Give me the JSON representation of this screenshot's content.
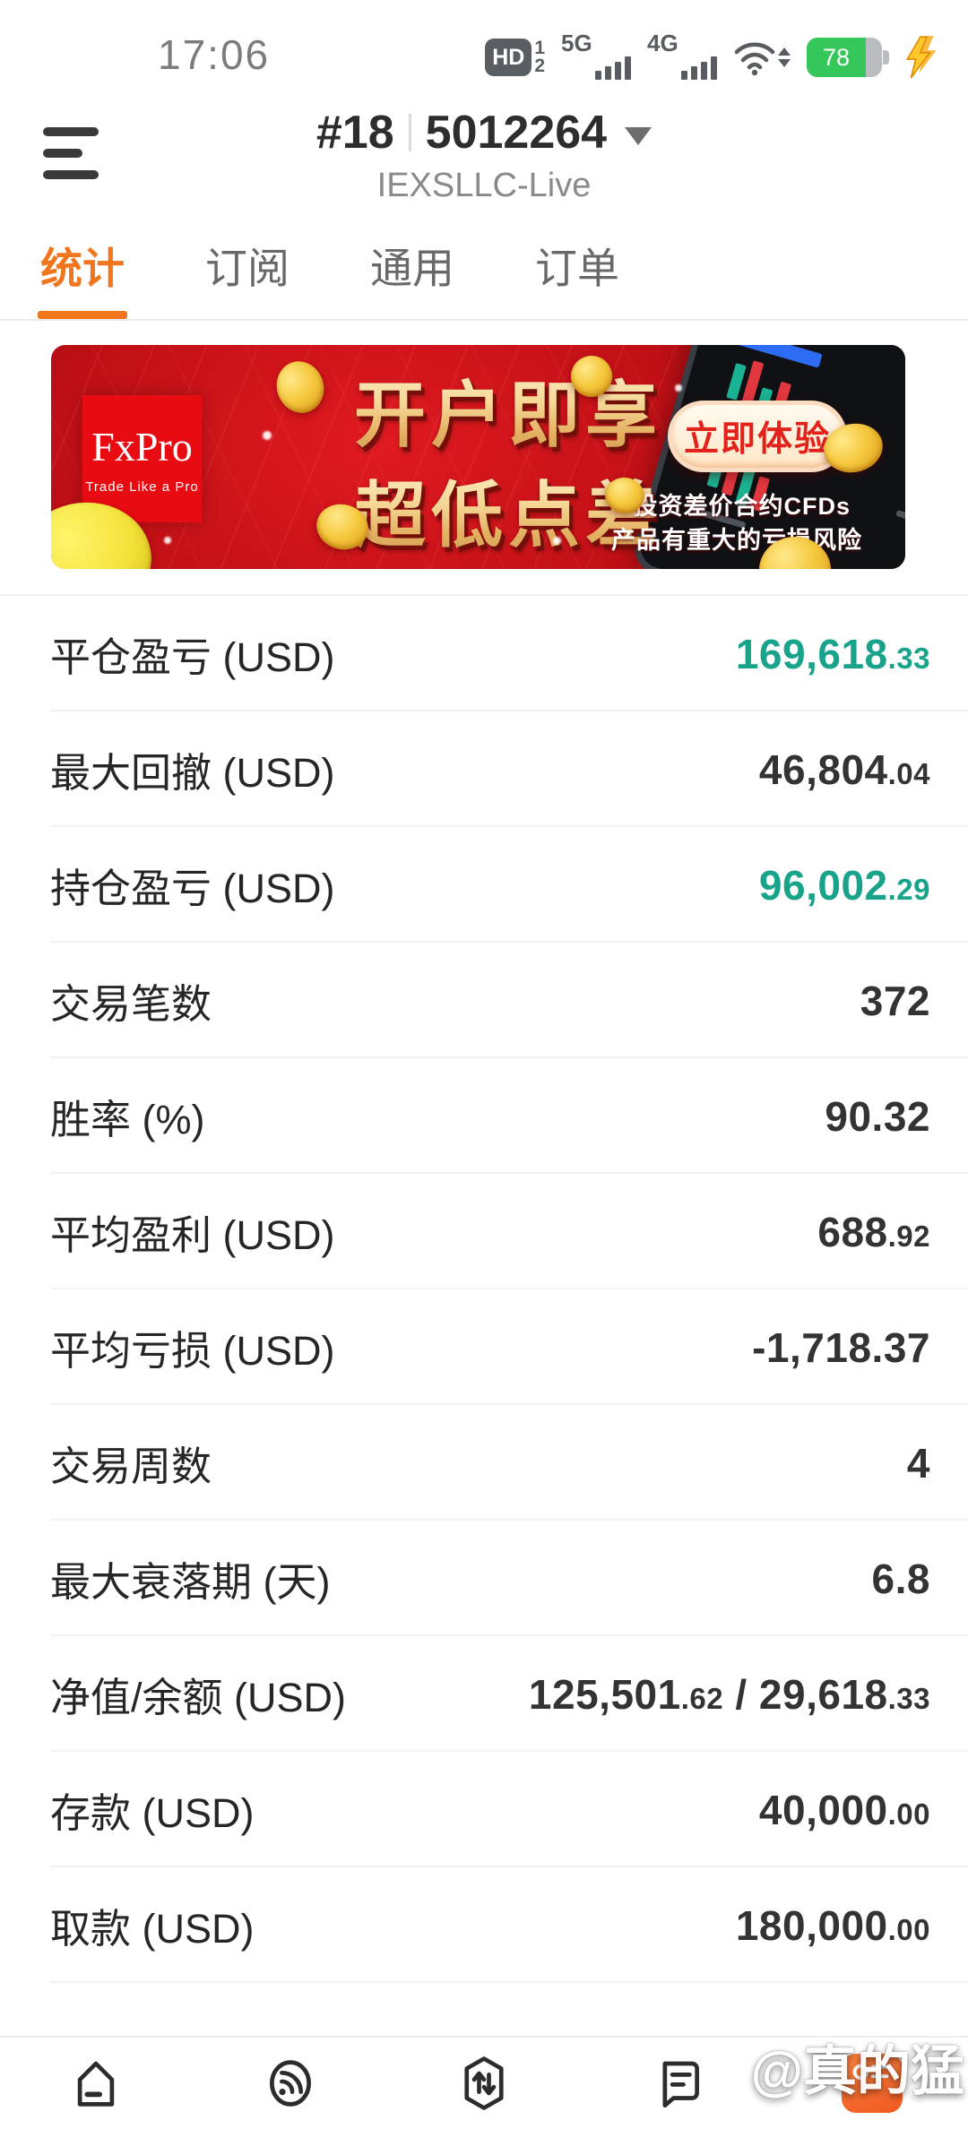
{
  "status_bar": {
    "time": "17:06",
    "hd_label": "HD",
    "sim1": "1",
    "sim2": "2",
    "network1": "5G",
    "network2": "4G",
    "battery_percent": "78"
  },
  "header": {
    "account_index": "#18",
    "account_number": "5012264",
    "server": "IEXSLLC-Live"
  },
  "tabs": [
    {
      "label": "统计",
      "active": true
    },
    {
      "label": "订阅",
      "active": false
    },
    {
      "label": "通用",
      "active": false
    },
    {
      "label": "订单",
      "active": false
    }
  ],
  "banner": {
    "brand": "FxPro",
    "brand_tagline": "Trade Like a Pro",
    "headline_line1": "开户即享",
    "headline_line2": "超低点差",
    "cta_label": "立即体验",
    "disclaimer_line1": "*投资差价合约CFDs",
    "disclaimer_line2": "产品有重大的亏损风险"
  },
  "stats": {
    "rows": [
      {
        "label": "平仓盈亏 (USD)",
        "tone": "teal",
        "value": [
          {
            "text": "169,618",
            "small": false
          },
          {
            "text": ".33",
            "small": true
          }
        ]
      },
      {
        "label": "最大回撤 (USD)",
        "tone": "dark",
        "value": [
          {
            "text": "46,804",
            "small": false
          },
          {
            "text": ".04",
            "small": true
          }
        ]
      },
      {
        "label": "持仓盈亏 (USD)",
        "tone": "teal",
        "value": [
          {
            "text": "96,002",
            "small": false
          },
          {
            "text": ".29",
            "small": true
          }
        ]
      },
      {
        "label": "交易笔数",
        "tone": "dark",
        "value": [
          {
            "text": "372",
            "small": false
          }
        ]
      },
      {
        "label": "胜率 (%)",
        "tone": "dark",
        "value": [
          {
            "text": "90.32",
            "small": false
          }
        ]
      },
      {
        "label": "平均盈利 (USD)",
        "tone": "dark",
        "value": [
          {
            "text": "688",
            "small": false
          },
          {
            "text": ".92",
            "small": true
          }
        ]
      },
      {
        "label": "平均亏损 (USD)",
        "tone": "dark",
        "value": [
          {
            "text": "-1,718.37",
            "small": false
          }
        ]
      },
      {
        "label": "交易周数",
        "tone": "dark",
        "value": [
          {
            "text": "4",
            "small": false
          }
        ]
      },
      {
        "label": "最大衰落期 (天)",
        "tone": "dark",
        "value": [
          {
            "text": "6.8",
            "small": false
          }
        ]
      },
      {
        "label": "净值/余额 (USD)",
        "tone": "dark",
        "value": [
          {
            "text": "125,501",
            "small": false
          },
          {
            "text": ".62",
            "small": true
          },
          {
            "text": " / ",
            "small": false
          },
          {
            "text": "29,618",
            "small": false
          },
          {
            "text": ".33",
            "small": true
          }
        ]
      },
      {
        "label": "存款 (USD)",
        "tone": "dark",
        "value": [
          {
            "text": "40,000",
            "small": false
          },
          {
            "text": ".00",
            "small": true
          }
        ]
      },
      {
        "label": "取款 (USD)",
        "tone": "dark",
        "value": [
          {
            "text": "180,000",
            "small": false
          },
          {
            "text": ".00",
            "small": true
          }
        ]
      }
    ]
  },
  "nav": {
    "items": [
      "home",
      "signals",
      "trade",
      "chat",
      "app-promo"
    ]
  },
  "watermark": {
    "text": "@真的猛"
  },
  "colors": {
    "accent_orange": "#f0751c",
    "profit_teal": "#18a38a",
    "banner_red": "#c01016",
    "cta_text_red": "#e3221c",
    "battery_green": "#35c75a",
    "value_dark": "#333333"
  }
}
